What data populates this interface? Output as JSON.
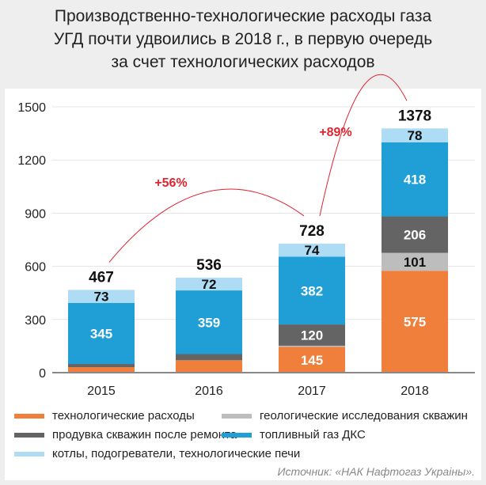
{
  "title": [
    "Производственно-технологические расходы газа",
    "УГД почти удвоились в 2018 г., в первую очередь",
    "за счет технологических расходов"
  ],
  "source": "Источник: «НАК Нафтогаз Украіны».",
  "chart_data": {
    "type": "bar",
    "stacked": true,
    "categories": [
      "2015",
      "2016",
      "2017",
      "2018"
    ],
    "ylim": [
      0,
      1500
    ],
    "yticks": [
      0,
      300,
      600,
      900,
      1200,
      1500
    ],
    "grid": true,
    "legend": "bottom",
    "series": [
      {
        "name": "технологические расходы",
        "color": "#f07f3c",
        "values": [
          31,
          70,
          145,
          575
        ],
        "labels": [
          "",
          "",
          "145",
          "575"
        ]
      },
      {
        "name": "геологические исследования скважин",
        "color": "#bdbdbd",
        "values": [
          0,
          0,
          7,
          101
        ],
        "labels": [
          "",
          "",
          "",
          "101"
        ]
      },
      {
        "name": "продувка скважин после ремонта",
        "color": "#646464",
        "values": [
          18,
          35,
          120,
          206
        ],
        "labels": [
          "",
          "",
          "120",
          "206"
        ]
      },
      {
        "name": "топливный газ ДКС",
        "color": "#1f9fd6",
        "values": [
          345,
          359,
          382,
          418
        ],
        "labels": [
          "345",
          "359",
          "382",
          "418"
        ]
      },
      {
        "name": "котлы, подогреватели, технологические печи",
        "color": "#afdcf5",
        "values": [
          73,
          72,
          74,
          78
        ],
        "labels": [
          "73",
          "72",
          "74",
          "78"
        ]
      }
    ],
    "totals": [
      "467",
      "536",
      "728",
      "1378"
    ],
    "annotations": [
      {
        "text": "+56%",
        "from": "2015",
        "to": "2017"
      },
      {
        "text": "+89%",
        "from": "2017",
        "to": "2018"
      }
    ],
    "annotation_color": "#e0242f"
  }
}
